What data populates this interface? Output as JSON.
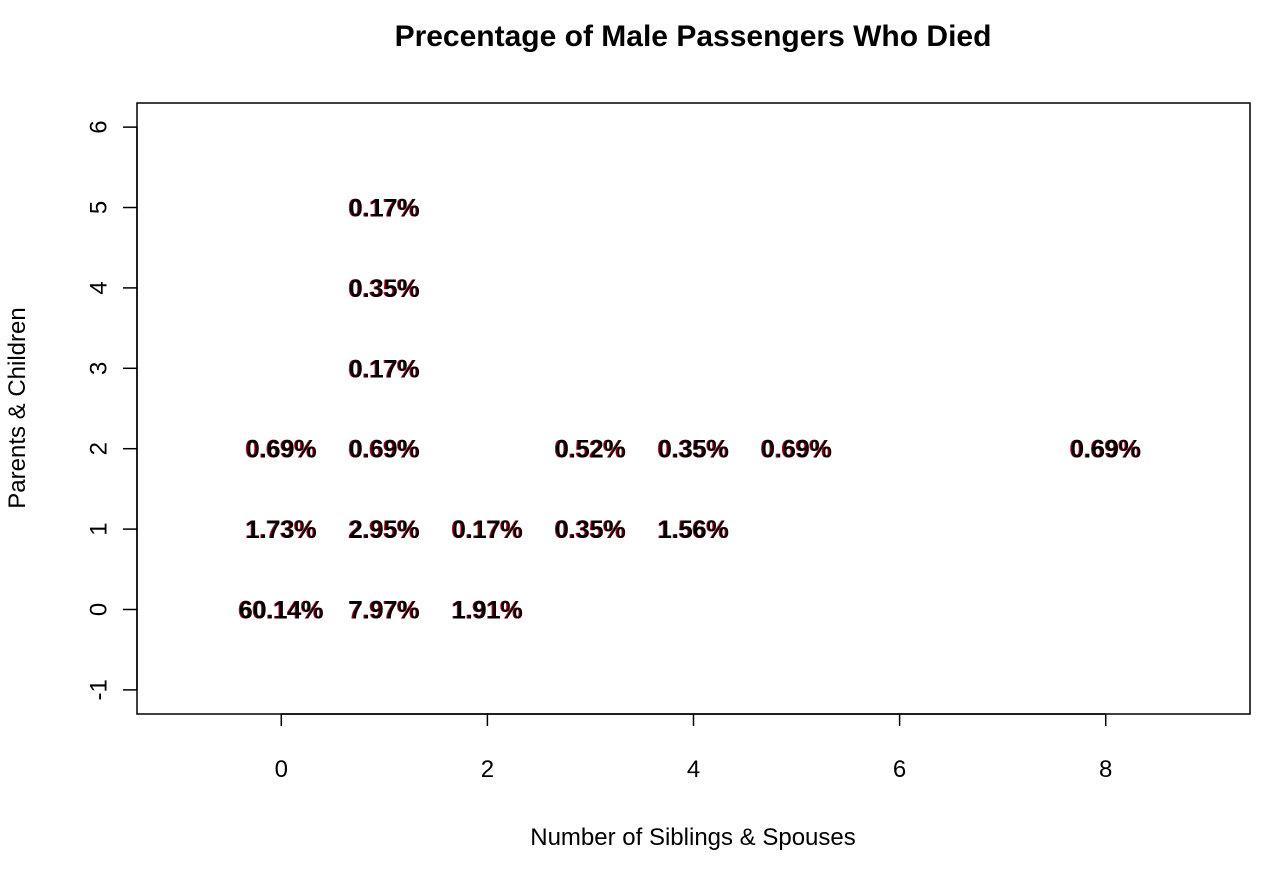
{
  "chart_data": {
    "type": "scatter",
    "title": "Precentage of Male Passengers Who Died",
    "xlabel": "Number of Siblings & Spouses",
    "ylabel": "Parents & Children",
    "xlim": [
      -1.4,
      9.4
    ],
    "ylim": [
      -1.3,
      6.3
    ],
    "x_ticks": [
      0,
      2,
      4,
      6,
      8
    ],
    "y_ticks": [
      -1,
      0,
      1,
      2,
      3,
      4,
      5,
      6
    ],
    "grid": false,
    "legend": "none",
    "colors": {
      "text": "#000000",
      "overlap": "#d4002a"
    },
    "points": [
      {
        "x": 0,
        "y": 0,
        "label": "60.14%"
      },
      {
        "x": 1,
        "y": 0,
        "label": "7.97%"
      },
      {
        "x": 2,
        "y": 0,
        "label": "1.91%"
      },
      {
        "x": 0,
        "y": 1,
        "label": "1.73%"
      },
      {
        "x": 1,
        "y": 1,
        "label": "2.95%"
      },
      {
        "x": 2,
        "y": 1,
        "label": "0.17%"
      },
      {
        "x": 3,
        "y": 1,
        "label": "0.35%"
      },
      {
        "x": 4,
        "y": 1,
        "label": "1.56%"
      },
      {
        "x": 0,
        "y": 2,
        "label": "0.69%"
      },
      {
        "x": 1,
        "y": 2,
        "label": "0.69%"
      },
      {
        "x": 3,
        "y": 2,
        "label": "0.52%"
      },
      {
        "x": 4,
        "y": 2,
        "label": "0.35%"
      },
      {
        "x": 5,
        "y": 2,
        "label": "0.69%"
      },
      {
        "x": 8,
        "y": 2,
        "label": "0.69%"
      },
      {
        "x": 1,
        "y": 3,
        "label": "0.17%"
      },
      {
        "x": 1,
        "y": 4,
        "label": "0.35%"
      },
      {
        "x": 1,
        "y": 5,
        "label": "0.17%"
      }
    ]
  }
}
